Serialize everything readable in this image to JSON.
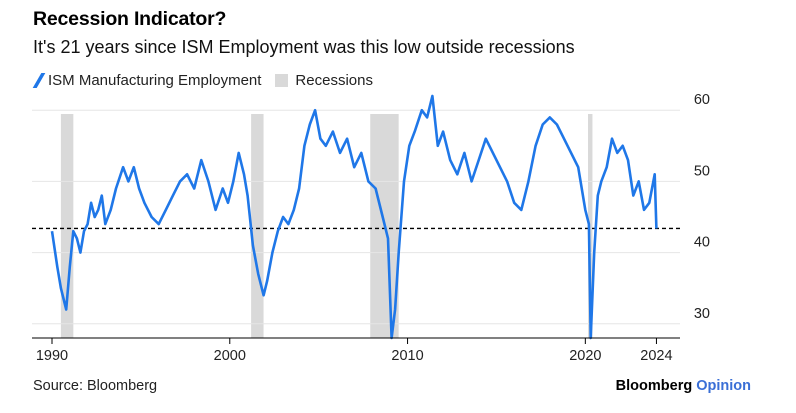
{
  "title": "Recession Indicator?",
  "subtitle": "It's 21 years since ISM Employment was this low outside recessions",
  "legend": {
    "series_label": "ISM Manufacturing Employment",
    "recession_label": "Recessions"
  },
  "footer": {
    "source": "Source: Bloomberg",
    "brand": "Bloomberg",
    "brand_suffix": "Opinion"
  },
  "colors": {
    "series": "#1f77e8",
    "recession": "#d9d9d9",
    "reference_line": "#000000",
    "axis": "#000000"
  },
  "chart_data": {
    "type": "line",
    "title": "Recession Indicator?",
    "subtitle": "It's 21 years since ISM Employment was this low outside recessions",
    "xlim": [
      1990,
      2024.2
    ],
    "ylim": [
      28,
      62
    ],
    "y_ticks": [
      30,
      40,
      50,
      60
    ],
    "x_ticks": [
      1990,
      2000,
      2010,
      2020,
      2024
    ],
    "y_axis_side": "right",
    "grid": "horizontal",
    "legend_position": "top-left",
    "reference_line": {
      "y": 43.4,
      "style": "dashed"
    },
    "recessions": [
      {
        "start": 1990.5,
        "end": 1991.2
      },
      {
        "start": 2001.2,
        "end": 2001.9
      },
      {
        "start": 2007.9,
        "end": 2009.5
      },
      {
        "start": 2020.15,
        "end": 2020.4
      }
    ],
    "series": [
      {
        "name": "ISM Manufacturing Employment",
        "x": [
          1990.0,
          1990.3,
          1990.5,
          1990.8,
          1991.0,
          1991.2,
          1991.4,
          1991.6,
          1991.8,
          1992.0,
          1992.2,
          1992.4,
          1992.6,
          1992.8,
          1993.0,
          1993.3,
          1993.6,
          1994.0,
          1994.3,
          1994.6,
          1994.9,
          1995.2,
          1995.6,
          1996.0,
          1996.4,
          1996.8,
          1997.2,
          1997.6,
          1998.0,
          1998.4,
          1998.8,
          1999.2,
          1999.6,
          1999.9,
          2000.2,
          2000.5,
          2000.8,
          2001.0,
          2001.3,
          2001.6,
          2001.9,
          2002.1,
          2002.4,
          2002.7,
          2003.0,
          2003.3,
          2003.6,
          2003.9,
          2004.2,
          2004.5,
          2004.8,
          2005.1,
          2005.4,
          2005.8,
          2006.2,
          2006.6,
          2007.0,
          2007.4,
          2007.8,
          2008.2,
          2008.6,
          2008.9,
          2009.1,
          2009.3,
          2009.5,
          2009.8,
          2010.1,
          2010.4,
          2010.8,
          2011.1,
          2011.4,
          2011.7,
          2012.0,
          2012.4,
          2012.8,
          2013.2,
          2013.6,
          2014.0,
          2014.4,
          2014.8,
          2015.2,
          2015.6,
          2016.0,
          2016.4,
          2016.8,
          2017.2,
          2017.6,
          2018.0,
          2018.4,
          2018.8,
          2019.2,
          2019.6,
          2020.0,
          2020.2,
          2020.3,
          2020.5,
          2020.7,
          2020.9,
          2021.2,
          2021.5,
          2021.8,
          2022.1,
          2022.4,
          2022.7,
          2023.0,
          2023.3,
          2023.6,
          2023.9,
          2024.0
        ],
        "values": [
          43,
          38,
          35,
          32,
          38,
          43,
          42,
          40,
          43,
          44,
          47,
          45,
          46,
          48,
          44,
          46,
          49,
          52,
          50,
          52,
          49,
          47,
          45,
          44,
          46,
          48,
          50,
          51,
          49,
          53,
          50,
          46,
          49,
          47,
          50,
          54,
          51,
          48,
          41,
          37,
          34,
          36,
          40,
          43,
          45,
          44,
          46,
          49,
          55,
          58,
          60,
          56,
          55,
          57,
          54,
          56,
          52,
          54,
          50,
          49,
          45,
          42,
          28,
          32,
          40,
          50,
          55,
          57,
          60,
          59,
          62,
          55,
          57,
          53,
          51,
          54,
          50,
          53,
          56,
          54,
          52,
          50,
          47,
          46,
          50,
          55,
          58,
          59,
          58,
          56,
          54,
          52,
          46,
          44,
          28,
          40,
          48,
          50,
          52,
          56,
          54,
          55,
          53,
          48,
          50,
          46,
          47,
          51,
          43.4
        ]
      }
    ]
  }
}
